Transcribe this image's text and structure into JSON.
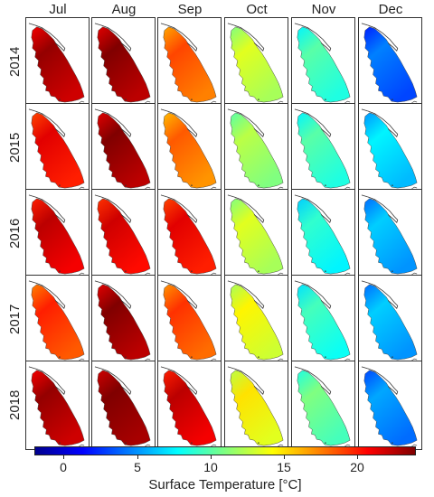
{
  "months": [
    "Jul",
    "Aug",
    "Sep",
    "Oct",
    "Nov",
    "Dec"
  ],
  "years": [
    "2014",
    "2015",
    "2016",
    "2017",
    "2018"
  ],
  "temperatures_c": [
    [
      22.0,
      22.5,
      17.5,
      12.0,
      8.5,
      3.0
    ],
    [
      20.0,
      22.5,
      17.0,
      11.0,
      8.5,
      6.0
    ],
    [
      21.0,
      20.5,
      20.0,
      12.0,
      7.5,
      5.0
    ],
    [
      18.5,
      22.5,
      18.0,
      13.0,
      8.0,
      5.0
    ],
    [
      22.0,
      23.0,
      21.0,
      13.5,
      9.5,
      4.0
    ]
  ],
  "colorbar": {
    "min": -2,
    "max": 24,
    "ticks": [
      "0",
      "5",
      "10",
      "15",
      "20"
    ],
    "tick_values": [
      0,
      5,
      10,
      15,
      20
    ],
    "label": "Surface Temperature [°C]",
    "colors": [
      "#00008f",
      "#0000ff",
      "#0080ff",
      "#00ffff",
      "#80ff80",
      "#ffff00",
      "#ff8000",
      "#ff0000",
      "#800000"
    ]
  }
}
